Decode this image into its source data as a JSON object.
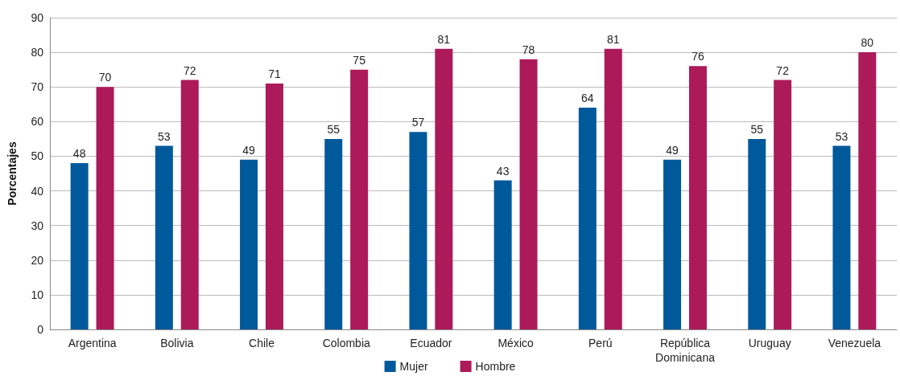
{
  "chart_data": {
    "type": "bar",
    "ylabel": "Porcentajes",
    "categories": [
      "Argentina",
      "Bolivia",
      "Chile",
      "Colombia",
      "Ecuador",
      "México",
      "Perú",
      "República\nDominicana",
      "Uruguay",
      "Venezuela"
    ],
    "series": [
      {
        "name": "Mujer",
        "color": "#00599b",
        "values": [
          48,
          53,
          49,
          55,
          57,
          43,
          64,
          49,
          55,
          53
        ]
      },
      {
        "name": "Hombre",
        "color": "#ac1a5a",
        "values": [
          70,
          72,
          71,
          75,
          81,
          78,
          81,
          76,
          72,
          80
        ]
      }
    ],
    "ylim": [
      0,
      90
    ],
    "yticks": [
      0,
      10,
      20,
      30,
      40,
      50,
      60,
      70,
      80,
      90
    ],
    "grid": "y",
    "legend": "bottom",
    "data_labels": true
  }
}
